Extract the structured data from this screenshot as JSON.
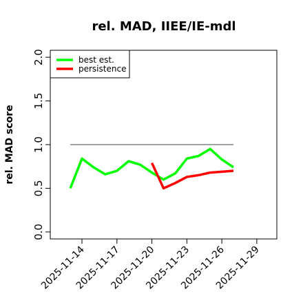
{
  "chart_data": {
    "type": "line",
    "title": "rel. MAD, IIEE/IE-mdl",
    "y_label": "rel. MAD score",
    "x": [
      "2025-11-13",
      "2025-11-14",
      "2025-11-15",
      "2025-11-16",
      "2025-11-17",
      "2025-11-18",
      "2025-11-19",
      "2025-11-20",
      "2025-11-21",
      "2025-11-22",
      "2025-11-23",
      "2025-11-24",
      "2025-11-25",
      "2025-11-26",
      "2025-11-27"
    ],
    "series": [
      {
        "name": "best est.",
        "color": "#00ff00",
        "values": [
          0.5,
          0.84,
          0.74,
          0.66,
          0.7,
          0.81,
          0.77,
          0.68,
          0.6,
          0.67,
          0.84,
          0.87,
          0.95,
          0.83,
          0.74
        ]
      },
      {
        "name": "persistence",
        "color": "#ff0000",
        "values": [
          null,
          null,
          null,
          null,
          null,
          null,
          null,
          0.79,
          0.5,
          0.56,
          0.63,
          0.65,
          0.68,
          0.69,
          0.7
        ]
      }
    ],
    "hline": {
      "value": 1.0,
      "from": "2025-11-13",
      "to": "2025-11-27",
      "color": "#808080"
    },
    "xlim": [
      "2025-11-12",
      "2025-11-30"
    ],
    "xticks": [
      "2025-11-14",
      "2025-11-17",
      "2025-11-20",
      "2025-11-23",
      "2025-11-26",
      "2025-11-29"
    ],
    "ylim": [
      0,
      2
    ],
    "yticks": [
      {
        "value": 0,
        "label": "0.0"
      },
      {
        "value": 0.5,
        "label": "0.5"
      },
      {
        "value": 1,
        "label": "1.0"
      },
      {
        "value": 1.5,
        "label": "1.5"
      },
      {
        "value": 2,
        "label": "2.0"
      }
    ],
    "legend": "top-left"
  }
}
